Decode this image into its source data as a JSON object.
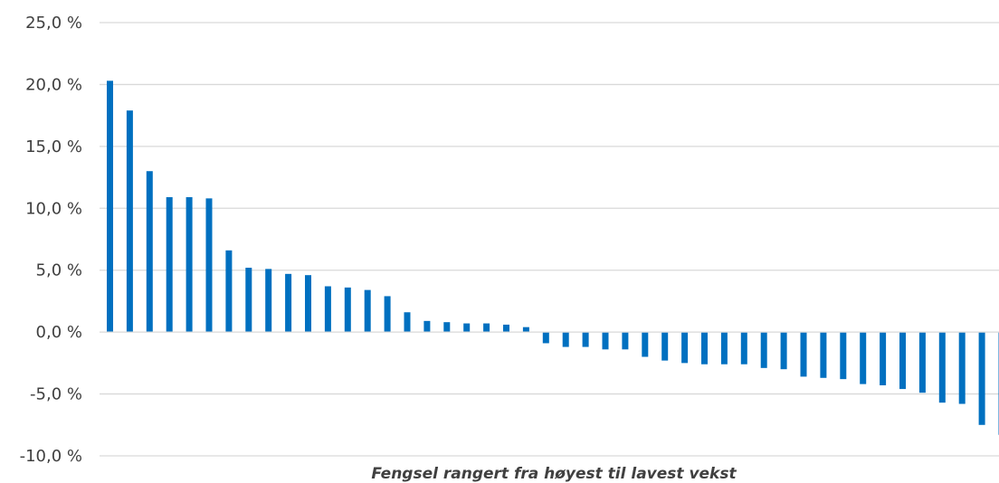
{
  "chart_data": {
    "type": "bar",
    "title": "",
    "xlabel": "Fengsel rangert fra høyest til lavest vekst",
    "ylabel": "",
    "ylim": [
      -10,
      25
    ],
    "yticks": [
      -10,
      -5,
      0,
      5,
      10,
      15,
      20,
      25
    ],
    "ytick_labels": [
      "-10,0 %",
      "-5,0 %",
      "0,0 %",
      "5,0 %",
      "10,0 %",
      "15,0 %",
      "20,0 %",
      "25,0 %"
    ],
    "grid": true,
    "bar_color": "#0070c0",
    "values": [
      20.3,
      17.9,
      13.0,
      10.9,
      10.9,
      10.8,
      6.6,
      5.2,
      5.1,
      4.7,
      4.6,
      3.7,
      3.6,
      3.4,
      2.9,
      1.6,
      0.9,
      0.8,
      0.7,
      0.7,
      0.6,
      0.4,
      -0.9,
      -1.2,
      -1.2,
      -1.4,
      -1.4,
      -2.0,
      -2.3,
      -2.5,
      -2.6,
      -2.6,
      -2.6,
      -2.9,
      -3.0,
      -3.6,
      -3.7,
      -3.8,
      -4.2,
      -4.3,
      -4.6,
      -4.9,
      -5.7,
      -5.8,
      -7.5,
      -8.3
    ]
  }
}
